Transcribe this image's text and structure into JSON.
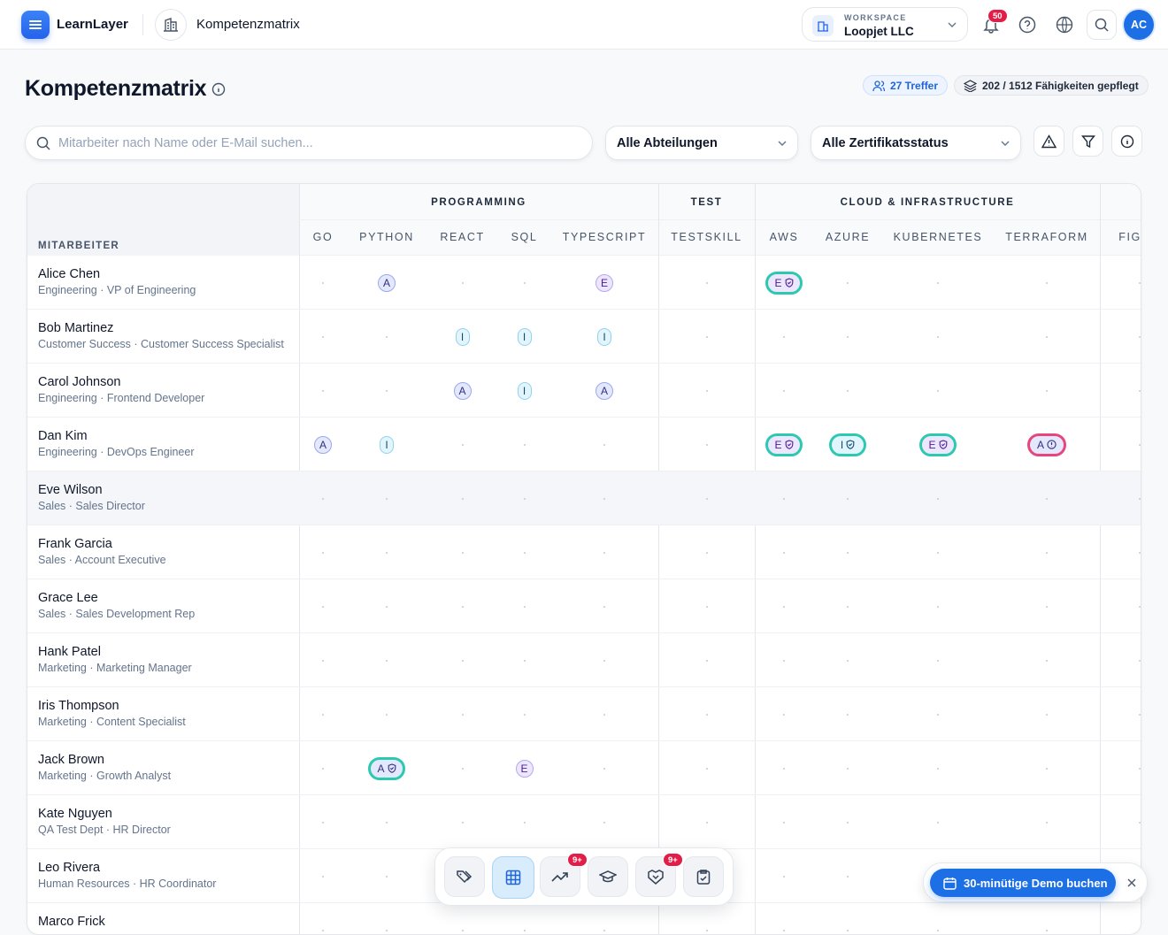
{
  "header": {
    "app_name": "LearnLayer",
    "page": "Kompetenzmatrix",
    "workspace_label": "WORKSPACE",
    "workspace": "Loopjet LLC",
    "notification_count": "50",
    "avatar": "AC"
  },
  "page": {
    "title": "Kompetenzmatrix",
    "hits": "27 Treffer",
    "skills_maintained": "202 / 1512 Fähigkeiten gepflegt"
  },
  "filters": {
    "search_placeholder": "Mitarbeiter nach Name oder E-Mail suchen...",
    "department": "Alle Abteilungen",
    "certificate_status": "Alle Zertifikatsstatus"
  },
  "matrix": {
    "employee_header": "MITARBEITER",
    "groups": [
      {
        "name": "PROGRAMMING",
        "skills": [
          "GO",
          "PYTHON",
          "REACT",
          "SQL",
          "TYPESCRIPT"
        ]
      },
      {
        "name": "TEST",
        "skills": [
          "TESTSKILL"
        ]
      },
      {
        "name": "CLOUD & INFRASTRUCTURE",
        "skills": [
          "AWS",
          "AZURE",
          "KUBERNETES",
          "TERRAFORM"
        ]
      },
      {
        "skills": [
          "FIGMA"
        ]
      }
    ],
    "rows": [
      {
        "name": "Alice Chen",
        "role": "Engineering · VP of Engineering",
        "cells": [
          null,
          {
            "level": "A"
          },
          null,
          null,
          {
            "level": "E"
          },
          null,
          {
            "level": "E",
            "cert": "valid"
          },
          null,
          null,
          null,
          null
        ]
      },
      {
        "name": "Bob Martinez",
        "role": "Customer Success · Customer Success Specialist",
        "cells": [
          null,
          null,
          {
            "level": "I"
          },
          {
            "level": "I"
          },
          {
            "level": "I"
          },
          null,
          null,
          null,
          null,
          null,
          null
        ]
      },
      {
        "name": "Carol Johnson",
        "role": "Engineering · Frontend Developer",
        "cells": [
          null,
          null,
          {
            "level": "A"
          },
          {
            "level": "I"
          },
          {
            "level": "A"
          },
          null,
          null,
          null,
          null,
          null,
          null
        ]
      },
      {
        "name": "Dan Kim",
        "role": "Engineering · DevOps Engineer",
        "cells": [
          {
            "level": "A"
          },
          {
            "level": "I"
          },
          null,
          null,
          null,
          null,
          {
            "level": "E",
            "cert": "valid"
          },
          {
            "level": "I",
            "cert": "valid"
          },
          {
            "level": "E",
            "cert": "valid"
          },
          {
            "level": "A",
            "cert": "expired"
          },
          null
        ]
      },
      {
        "name": "Eve Wilson",
        "role": "Sales · Sales Director",
        "cells": [
          null,
          null,
          null,
          null,
          null,
          null,
          null,
          null,
          null,
          null,
          null
        ]
      },
      {
        "name": "Frank Garcia",
        "role": "Sales · Account Executive",
        "cells": [
          null,
          null,
          null,
          null,
          null,
          null,
          null,
          null,
          null,
          null,
          null
        ]
      },
      {
        "name": "Grace Lee",
        "role": "Sales · Sales Development Rep",
        "cells": [
          null,
          null,
          null,
          null,
          null,
          null,
          null,
          null,
          null,
          null,
          null
        ]
      },
      {
        "name": "Hank Patel",
        "role": "Marketing · Marketing Manager",
        "cells": [
          null,
          null,
          null,
          null,
          null,
          null,
          null,
          null,
          null,
          null,
          null
        ]
      },
      {
        "name": "Iris Thompson",
        "role": "Marketing · Content Specialist",
        "cells": [
          null,
          null,
          null,
          null,
          null,
          null,
          null,
          null,
          null,
          null,
          null
        ]
      },
      {
        "name": "Jack Brown",
        "role": "Marketing · Growth Analyst",
        "cells": [
          null,
          {
            "level": "A",
            "cert": "valid"
          },
          null,
          {
            "level": "E"
          },
          null,
          null,
          null,
          null,
          null,
          null,
          null
        ]
      },
      {
        "name": "Kate Nguyen",
        "role": "QA Test Dept · HR Director",
        "cells": [
          null,
          null,
          null,
          null,
          null,
          null,
          null,
          null,
          null,
          null,
          null
        ]
      },
      {
        "name": "Leo Rivera",
        "role": "Human Resources · HR Coordinator",
        "cells": [
          null,
          null,
          null,
          null,
          null,
          null,
          null,
          null,
          null,
          null,
          null
        ]
      },
      {
        "name": "Marco Frick",
        "cells": [
          null,
          null,
          null,
          null,
          null,
          null,
          null,
          null,
          null,
          null,
          null
        ]
      }
    ]
  },
  "dock": {
    "trend_badge": "9+",
    "partner_badge": "9+"
  },
  "demo": {
    "button": "30-minütige Demo buchen"
  }
}
